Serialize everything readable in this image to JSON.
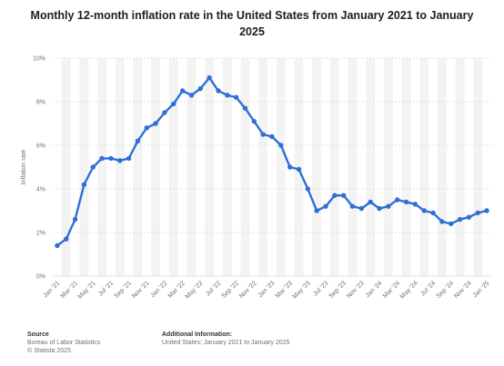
{
  "chart_data": {
    "type": "line",
    "title": "Monthly 12-month inflation rate in the United States from January 2021 to January 2025",
    "xlabel": "",
    "ylabel": "Inflation rate",
    "ylim": [
      0,
      10
    ],
    "y_ticks": [
      "0%",
      "2%",
      "4%",
      "6%",
      "8%",
      "10%"
    ],
    "y_tick_values": [
      0,
      2,
      4,
      6,
      8,
      10
    ],
    "categories": [
      "Jan '21",
      "Feb '21",
      "Mar '21",
      "Apr '21",
      "May '21",
      "Jun '21",
      "Jul '21",
      "Aug '21",
      "Sep '21",
      "Oct '21",
      "Nov '21",
      "Dec '21",
      "Jan '22",
      "Feb '22",
      "Mar '22",
      "Apr '22",
      "May '22",
      "Jun '22",
      "Jul '22",
      "Aug '22",
      "Sep '22",
      "Oct '22",
      "Nov '22",
      "Dec '22",
      "Jan '23",
      "Feb '23",
      "Mar '23",
      "Apr '23",
      "May '23",
      "Jun '23",
      "Jul '23",
      "Aug '23",
      "Sep '23",
      "Oct '23",
      "Nov '23",
      "Dec '23",
      "Jan '24",
      "Feb '24",
      "Mar '24",
      "Apr '24",
      "May '24",
      "Jun '24",
      "Jul '24",
      "Aug '24",
      "Sep '24",
      "Oct '24",
      "Nov '24",
      "Dec '24",
      "Jan '25"
    ],
    "x_tick_labels": [
      "Jan '21",
      "Mar '21",
      "May '21",
      "Jul '21",
      "Sep '21",
      "Nov '21",
      "Jan '22",
      "Mar '22",
      "May '22",
      "Jul '22",
      "Sep '22",
      "Nov '22",
      "Jan '23",
      "Mar '23",
      "May '23",
      "Jul '23",
      "Sep '23",
      "Nov '23",
      "Jan '24",
      "Mar '24",
      "May '24",
      "Jul '24",
      "Sep '24",
      "Nov '24",
      "Jan '25"
    ],
    "series": [
      {
        "values": [
          1.4,
          1.7,
          2.6,
          4.2,
          5.0,
          5.4,
          5.4,
          5.3,
          5.4,
          6.2,
          6.8,
          7.0,
          7.5,
          7.9,
          8.5,
          8.3,
          8.6,
          9.1,
          8.5,
          8.3,
          8.2,
          7.7,
          7.1,
          6.5,
          6.4,
          6.0,
          5.0,
          4.9,
          4.0,
          3.0,
          3.2,
          3.7,
          3.7,
          3.2,
          3.1,
          3.4,
          3.1,
          3.2,
          3.5,
          3.4,
          3.3,
          3.0,
          2.9,
          2.5,
          2.4,
          2.6,
          2.7,
          2.9,
          3.0
        ]
      }
    ],
    "grid": true,
    "legend": "none",
    "colors": {
      "line": "#2f6fd6",
      "band": "#f3f3f3",
      "grid": "#d9d9d9",
      "tick_text": "#707070"
    }
  },
  "footer": {
    "source_head": "Source",
    "source_line1": "Bureau of Labor Statistics",
    "source_line2": "© Statista 2025",
    "info_head": "Additional Information:",
    "info_line1": "United States; January 2021 to January 2025"
  }
}
